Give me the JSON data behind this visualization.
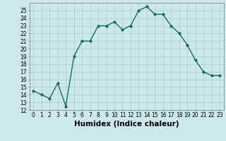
{
  "x": [
    0,
    1,
    2,
    3,
    4,
    5,
    6,
    7,
    8,
    9,
    10,
    11,
    12,
    13,
    14,
    15,
    16,
    17,
    18,
    19,
    20,
    21,
    22,
    23
  ],
  "y": [
    14.5,
    14,
    13.5,
    15.5,
    12.5,
    19,
    21,
    21,
    23,
    23,
    23.5,
    22.5,
    23,
    25,
    25.5,
    24.5,
    24.5,
    23,
    22,
    20.5,
    18.5,
    17,
    16.5,
    16.5
  ],
  "line_color": "#1a6b5a",
  "marker": "o",
  "marker_size": 2.0,
  "linewidth": 1.0,
  "bg_color": "#cce8e8",
  "grid_color": "#a8d0d0",
  "xlabel": "Humidex (Indice chaleur)",
  "xlim": [
    -0.5,
    23.5
  ],
  "ylim": [
    12,
    26
  ],
  "yticks": [
    12,
    13,
    14,
    15,
    16,
    17,
    18,
    19,
    20,
    21,
    22,
    23,
    24,
    25
  ],
  "xticks": [
    0,
    1,
    2,
    3,
    4,
    5,
    6,
    7,
    8,
    9,
    10,
    11,
    12,
    13,
    14,
    15,
    16,
    17,
    18,
    19,
    20,
    21,
    22,
    23
  ],
  "tick_fontsize": 5.5,
  "label_fontsize": 7.5
}
